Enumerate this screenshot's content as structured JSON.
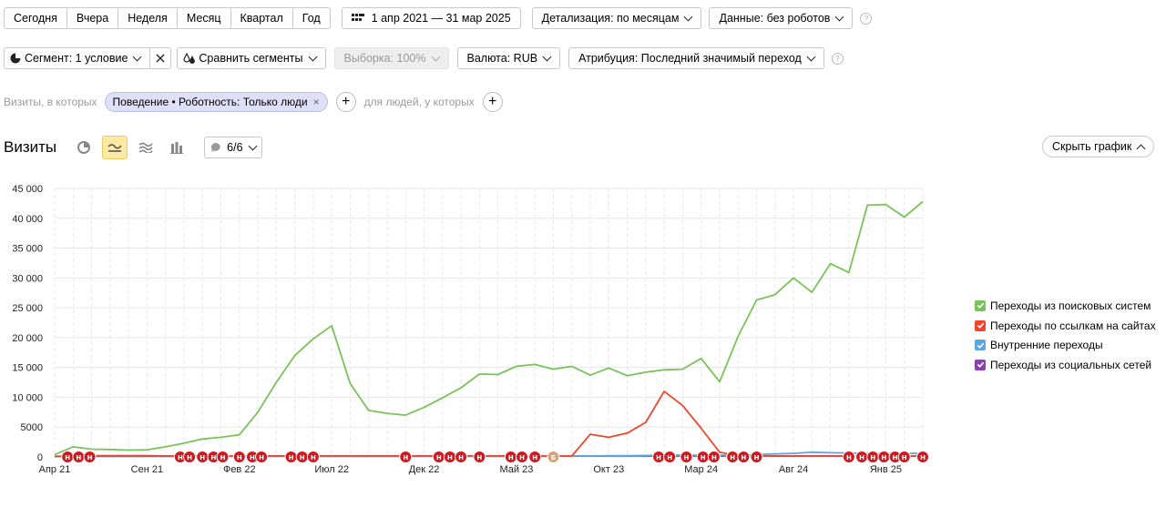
{
  "periods": [
    "Сегодня",
    "Вчера",
    "Неделя",
    "Месяц",
    "Квартал",
    "Год"
  ],
  "date_range": "1 апр 2021 — 31 мар 2025",
  "detail": "Детализация: по месяцам",
  "data_filter": "Данные: без роботов",
  "segment": "Сегмент: 1 условие",
  "compare": "Сравнить сегменты",
  "sample": "Выборка: 100%",
  "currency": "Валюта: RUB",
  "attribution": "Атрибуция: Последний значимый переход",
  "help_mark": "?",
  "filter": {
    "prefix": "Визиты, в которых",
    "tag": "Поведение • Роботность: Только люди",
    "tag_close": "×",
    "middle": "для людей, у которых",
    "plus": "+"
  },
  "chart_header": {
    "title": "Визиты",
    "annotations": "6/6",
    "hide_chart": "Скрыть график"
  },
  "colors": {
    "search": "#7ac25a",
    "links": "#f0462d",
    "internal": "#5ba7de",
    "social": "#8d3fb4",
    "marker": "#d3191f",
    "marker_alt": "#d9a27c"
  },
  "chart_data": {
    "type": "line",
    "ylim": [
      0,
      45000
    ],
    "yticks": [
      0,
      5000,
      10000,
      15000,
      20000,
      25000,
      30000,
      35000,
      40000,
      45000
    ],
    "ytick_labels": [
      "0",
      "5000",
      "10 000",
      "15 000",
      "20 000",
      "25 000",
      "30 000",
      "35 000",
      "40 000",
      "45 000"
    ],
    "x": [
      "2021-04",
      "2021-05",
      "2021-06",
      "2021-07",
      "2021-08",
      "2021-09",
      "2021-10",
      "2021-11",
      "2021-12",
      "2022-01",
      "2022-02",
      "2022-03",
      "2022-04",
      "2022-05",
      "2022-06",
      "2022-07",
      "2022-08",
      "2022-09",
      "2022-10",
      "2022-11",
      "2022-12",
      "2023-01",
      "2023-02",
      "2023-03",
      "2023-04",
      "2023-05",
      "2023-06",
      "2023-07",
      "2023-08",
      "2023-09",
      "2023-10",
      "2023-11",
      "2023-12",
      "2024-01",
      "2024-02",
      "2024-03",
      "2024-04",
      "2024-05",
      "2024-06",
      "2024-07",
      "2024-08",
      "2024-09",
      "2024-10",
      "2024-11",
      "2024-12",
      "2025-01",
      "2025-02",
      "2025-03"
    ],
    "xtick_labels": [
      {
        "i": 0,
        "label": "Апр 21"
      },
      {
        "i": 5,
        "label": "Сен 21"
      },
      {
        "i": 10,
        "label": "Фев 22"
      },
      {
        "i": 15,
        "label": "Июл 22"
      },
      {
        "i": 20,
        "label": "Дек 22"
      },
      {
        "i": 25,
        "label": "Май 23"
      },
      {
        "i": 30,
        "label": "Окт 23"
      },
      {
        "i": 35,
        "label": "Мар 24"
      },
      {
        "i": 40,
        "label": "Авг 24"
      },
      {
        "i": 45,
        "label": "Янв 25"
      }
    ],
    "series": [
      {
        "name": "Переходы из поисковых систем",
        "color_key": "search",
        "values": [
          400,
          1700,
          1300,
          1250,
          1150,
          1200,
          1700,
          2300,
          3000,
          3300,
          3700,
          7500,
          12500,
          17000,
          19800,
          22000,
          12300,
          7800,
          7300,
          7000,
          8300,
          9900,
          11600,
          13900,
          13800,
          15200,
          15500,
          14700,
          15200,
          13700,
          14900,
          13600,
          14200,
          14600,
          14700,
          16500,
          12600,
          20200,
          26300,
          27200,
          30000,
          27600,
          32400,
          30900,
          42200,
          42300,
          40200,
          42800
        ]
      },
      {
        "name": "Переходы по ссылкам на сайтах",
        "color_key": "links",
        "values": [
          100,
          150,
          150,
          150,
          150,
          150,
          150,
          150,
          150,
          150,
          150,
          150,
          150,
          150,
          150,
          150,
          150,
          150,
          150,
          150,
          150,
          150,
          150,
          150,
          150,
          150,
          150,
          150,
          150,
          3800,
          3300,
          4000,
          5800,
          11000,
          8600,
          4800,
          800,
          200,
          150,
          150,
          150,
          150,
          150,
          150,
          150,
          150,
          150,
          150
        ]
      },
      {
        "name": "Внутренние переходы",
        "color_key": "internal",
        "values": [
          50,
          80,
          80,
          80,
          80,
          80,
          80,
          80,
          80,
          80,
          100,
          100,
          100,
          100,
          100,
          100,
          100,
          100,
          100,
          100,
          100,
          100,
          100,
          100,
          100,
          100,
          100,
          100,
          150,
          150,
          200,
          200,
          250,
          300,
          300,
          300,
          300,
          300,
          400,
          500,
          600,
          800,
          700,
          650,
          600,
          600,
          600,
          600
        ]
      },
      {
        "name": "Переходы из социальных сетей",
        "color_key": "social",
        "values": [
          50,
          150,
          200,
          200,
          200,
          200,
          150,
          150,
          150,
          150,
          150,
          150,
          150,
          150,
          150,
          150,
          150,
          150,
          150,
          150,
          150,
          150,
          150,
          150,
          150,
          150,
          150,
          150,
          150,
          150,
          150,
          150,
          150,
          150,
          150,
          150,
          150,
          150,
          150,
          150,
          150,
          150,
          150,
          150,
          150,
          150,
          150,
          150
        ]
      }
    ],
    "annotation_markers": [
      {
        "i": 0.7,
        "label": "Н"
      },
      {
        "i": 1.3,
        "label": "Н"
      },
      {
        "i": 1.9,
        "label": "Н"
      },
      {
        "i": 6.8,
        "label": "Н"
      },
      {
        "i": 7.3,
        "label": "Н"
      },
      {
        "i": 8.0,
        "label": "Н"
      },
      {
        "i": 8.6,
        "label": "Н"
      },
      {
        "i": 9.1,
        "label": "Н"
      },
      {
        "i": 10.0,
        "label": "Н"
      },
      {
        "i": 10.7,
        "label": "Н"
      },
      {
        "i": 11.2,
        "label": "Н"
      },
      {
        "i": 12.8,
        "label": "Н"
      },
      {
        "i": 13.4,
        "label": "Н"
      },
      {
        "i": 14.0,
        "label": "Н"
      },
      {
        "i": 19.0,
        "label": "Н"
      },
      {
        "i": 20.8,
        "label": "Н"
      },
      {
        "i": 21.4,
        "label": "Н"
      },
      {
        "i": 22.0,
        "label": "Н"
      },
      {
        "i": 23.0,
        "label": "Н"
      },
      {
        "i": 24.7,
        "label": "Н"
      },
      {
        "i": 25.3,
        "label": "Н"
      },
      {
        "i": 26.0,
        "label": "Н"
      },
      {
        "i": 27.0,
        "label": "Б",
        "alt": true
      },
      {
        "i": 32.7,
        "label": "Н"
      },
      {
        "i": 33.3,
        "label": "Н"
      },
      {
        "i": 34.2,
        "label": "Н"
      },
      {
        "i": 35.1,
        "label": "Н"
      },
      {
        "i": 35.7,
        "label": "Н"
      },
      {
        "i": 36.7,
        "label": "Н"
      },
      {
        "i": 37.3,
        "label": "Н"
      },
      {
        "i": 38.0,
        "label": "Н"
      },
      {
        "i": 43.0,
        "label": "Н"
      },
      {
        "i": 43.7,
        "label": "Н"
      },
      {
        "i": 44.3,
        "label": "Н"
      },
      {
        "i": 44.9,
        "label": "Н"
      },
      {
        "i": 45.5,
        "label": "Н"
      },
      {
        "i": 46.0,
        "label": "Н"
      },
      {
        "i": 47.0,
        "label": "Н"
      }
    ]
  }
}
